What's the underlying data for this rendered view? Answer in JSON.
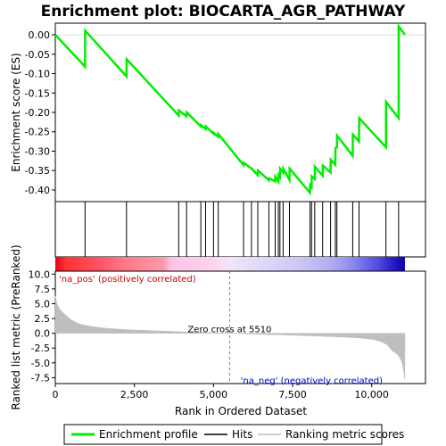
{
  "chart_data": {
    "type": "line",
    "title": "Enrichment plot: BIOCARTA_AGR_PATHWAY",
    "top_panel": {
      "ylabel": "Enrichment score (ES)",
      "ylim": [
        -0.43,
        0.03
      ],
      "yticks": [
        "0.00",
        "-0.05",
        "-0.10",
        "-0.15",
        "-0.20",
        "-0.25",
        "-0.30",
        "-0.35",
        "-0.40"
      ],
      "ytick_values": [
        0.0,
        -0.05,
        -0.1,
        -0.15,
        -0.2,
        -0.25,
        -0.3,
        -0.35,
        -0.4
      ],
      "series": [
        {
          "name": "Enrichment profile",
          "color": "#00ee00",
          "x": [
            0,
            940,
            945,
            2250,
            2255,
            3900,
            3905,
            4150,
            4155,
            4600,
            4605,
            4750,
            4755,
            5000,
            5005,
            5150,
            5155,
            5950,
            5955,
            6200,
            6205,
            6400,
            6405,
            6750,
            6755,
            6950,
            6955,
            7050,
            7055,
            7100,
            7105,
            7200,
            7205,
            7400,
            7405,
            8050,
            8055,
            8100,
            8105,
            8200,
            8205,
            8450,
            8455,
            8700,
            8705,
            8850,
            8855,
            8900,
            8905,
            9400,
            9405,
            9600,
            9605,
            10450,
            10455,
            10850,
            10855,
            11050
          ],
          "y": [
            0.0,
            -0.082,
            0.011,
            -0.107,
            -0.063,
            -0.208,
            -0.195,
            -0.21,
            -0.2,
            -0.236,
            -0.233,
            -0.243,
            -0.236,
            -0.255,
            -0.253,
            -0.263,
            -0.256,
            -0.336,
            -0.33,
            -0.345,
            -0.345,
            -0.362,
            -0.35,
            -0.375,
            -0.37,
            -0.378,
            -0.366,
            -0.378,
            -0.362,
            -0.367,
            -0.345,
            -0.355,
            -0.345,
            -0.374,
            -0.345,
            -0.407,
            -0.388,
            -0.393,
            -0.365,
            -0.372,
            -0.34,
            -0.363,
            -0.337,
            -0.355,
            -0.322,
            -0.335,
            -0.292,
            -0.29,
            -0.26,
            -0.312,
            -0.257,
            -0.275,
            -0.215,
            -0.29,
            -0.173,
            -0.215,
            0.022,
            0.0
          ]
        }
      ]
    },
    "hits": [
      940,
      2250,
      3900,
      4150,
      4600,
      4750,
      5000,
      5150,
      5950,
      6200,
      6400,
      6750,
      6950,
      7050,
      7100,
      7200,
      7400,
      8050,
      8100,
      8200,
      8450,
      8700,
      8850,
      8900,
      9400,
      9600,
      10450,
      10850
    ],
    "bottom_panel": {
      "ylabel": "Ranked list metric (PreRanked)",
      "xlabel": "Rank in Ordered Dataset",
      "ylim": [
        -8.5,
        10.5
      ],
      "yticks": [
        "10.0",
        "7.5",
        "5.0",
        "2.5",
        "0.0",
        "-2.5",
        "-5.0",
        "-7.5"
      ],
      "ytick_values": [
        10.0,
        7.5,
        5.0,
        2.5,
        0.0,
        -2.5,
        -5.0,
        -7.5
      ],
      "xlim": [
        0,
        11700
      ],
      "xticks": [
        "0",
        "2,500",
        "5,000",
        "7,500",
        "10,000"
      ],
      "xtick_values": [
        0,
        2500,
        5000,
        7500,
        10000
      ],
      "metric_curve": {
        "x": [
          0,
          50,
          150,
          300,
          500,
          700,
          900,
          1200,
          1600,
          2000,
          2500,
          3000,
          3500,
          4000,
          4500,
          5000,
          5510,
          6000,
          6500,
          7000,
          7500,
          8000,
          8500,
          9000,
          9500,
          10000,
          10300,
          10500,
          10650,
          10750,
          10850,
          10950,
          11000,
          11050
        ],
        "y": [
          6.3,
          5.0,
          4.0,
          3.2,
          2.3,
          1.7,
          1.4,
          1.1,
          0.85,
          0.7,
          0.55,
          0.45,
          0.35,
          0.25,
          0.18,
          0.1,
          0.0,
          -0.1,
          -0.18,
          -0.25,
          -0.33,
          -0.42,
          -0.52,
          -0.62,
          -0.75,
          -1.0,
          -1.4,
          -2.0,
          -3.0,
          -3.3,
          -3.8,
          -4.8,
          -6.0,
          -7.8
        ]
      },
      "zero_cross_label": "Zero cross at 5510",
      "zero_cross": 5510,
      "pos_label": "'na_pos' (positively correlated)",
      "neg_label": "'na_neg' (negatively correlated)"
    },
    "legend": [
      "Enrichment profile",
      "Hits",
      "Ranking metric scores"
    ],
    "colors": {
      "profile": "#00ee00",
      "hits": "#000000",
      "metric": "#bebebe",
      "pos_label": "#cc0000",
      "neg_label": "#0000cc",
      "zero_line": "#808080"
    },
    "xmax": 11700,
    "n_genes": 11050
  }
}
